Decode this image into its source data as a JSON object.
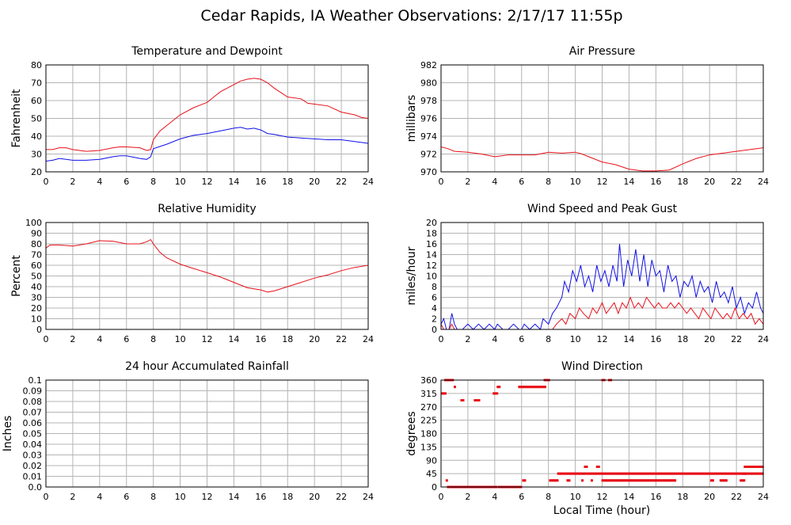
{
  "page_title": "Cedar Rapids, IA Weather Observations: 2/17/17 11:55p",
  "footer_xlabel": "Local Time (hour)",
  "colors": {
    "red": "#e8101a",
    "blue": "#1010e8",
    "grid": "#b4b4b4",
    "axis": "#000000"
  },
  "x_ticks": [
    "0",
    "2",
    "4",
    "6",
    "8",
    "10",
    "12",
    "14",
    "16",
    "18",
    "20",
    "22",
    "24"
  ],
  "chart_data": [
    {
      "id": "temp",
      "type": "line",
      "title": "Temperature and Dewpoint",
      "ylabel": "Fahrenheit",
      "xlim": [
        0,
        24
      ],
      "ylim": [
        20,
        80
      ],
      "yticks": [
        "20",
        "30",
        "40",
        "50",
        "60",
        "70",
        "80"
      ],
      "series": [
        {
          "color": "red",
          "x": [
            0,
            0.5,
            1,
            1.5,
            2,
            3,
            4,
            5,
            5.5,
            6,
            7,
            7.5,
            7.8,
            8,
            8.5,
            9,
            10,
            11,
            12,
            12.5,
            13,
            14,
            14.5,
            15,
            15.5,
            16,
            16.5,
            17,
            18,
            19,
            19.5,
            20,
            21,
            22,
            23,
            23.5,
            24
          ],
          "y": [
            32.5,
            32.5,
            33.5,
            33.5,
            32.5,
            31.5,
            32,
            33.5,
            34,
            34,
            33.5,
            32,
            32.5,
            38,
            43,
            46,
            52,
            56,
            59,
            62,
            65,
            69,
            71,
            72,
            72.5,
            72,
            70,
            67,
            62,
            61,
            58.5,
            58,
            57,
            53.5,
            52,
            50.5,
            50
          ]
        },
        {
          "color": "blue",
          "x": [
            0,
            0.5,
            1,
            2,
            3,
            4,
            5,
            5.5,
            6,
            7,
            7.5,
            7.8,
            8,
            9,
            10,
            11,
            12,
            13,
            14,
            14.5,
            15,
            15.5,
            16,
            16.5,
            17,
            18,
            19,
            20,
            21,
            22,
            23,
            24
          ],
          "y": [
            26,
            26.5,
            27.5,
            26.5,
            26.5,
            27,
            28.5,
            29,
            29,
            27.5,
            27,
            28.5,
            33,
            35.5,
            38.5,
            40.5,
            41.5,
            43,
            44.5,
            45,
            44,
            44.5,
            43.5,
            41.5,
            41,
            39.5,
            39,
            38.5,
            38,
            38,
            37,
            36
          ]
        }
      ]
    },
    {
      "id": "pressure",
      "type": "line",
      "title": "Air Pressure",
      "ylabel": "millibars",
      "xlim": [
        0,
        24
      ],
      "ylim": [
        970,
        982
      ],
      "yticks": [
        "970",
        "972",
        "974",
        "976",
        "978",
        "980",
        "982"
      ],
      "series": [
        {
          "color": "red",
          "x": [
            0,
            0.5,
            1,
            2,
            3,
            4,
            5,
            6,
            7,
            8,
            9,
            10,
            10.5,
            11,
            12,
            13,
            14,
            15,
            16,
            17,
            18,
            19,
            20,
            21,
            22,
            23,
            24
          ],
          "y": [
            972.8,
            972.6,
            972.3,
            972.2,
            972,
            971.7,
            971.9,
            971.9,
            971.9,
            972.2,
            972.1,
            972.2,
            972.0,
            971.7,
            971.1,
            970.8,
            970.3,
            970.1,
            970.1,
            970.2,
            970.9,
            971.5,
            971.9,
            972.1,
            972.3,
            972.5,
            972.7
          ]
        }
      ]
    },
    {
      "id": "humidity",
      "type": "line",
      "title": "Relative Humidity",
      "ylabel": "Percent",
      "xlim": [
        0,
        24
      ],
      "ylim": [
        0,
        100
      ],
      "yticks": [
        "0",
        "10",
        "20",
        "30",
        "40",
        "50",
        "60",
        "70",
        "80",
        "90",
        "100"
      ],
      "series": [
        {
          "color": "red",
          "x": [
            0,
            0.3,
            1,
            2,
            3,
            4,
            5,
            6,
            7,
            7.5,
            7.8,
            8,
            8.5,
            9,
            10,
            11,
            12,
            13,
            14,
            15,
            16,
            16.5,
            17,
            18,
            19,
            20,
            21,
            22,
            23,
            24
          ],
          "y": [
            76,
            79,
            79,
            78,
            80,
            83,
            82.5,
            80,
            80,
            82,
            84,
            80,
            72,
            67,
            61,
            57,
            53,
            49,
            44,
            39,
            37,
            35,
            36,
            40,
            44,
            48,
            51,
            55,
            58,
            60
          ]
        }
      ]
    },
    {
      "id": "wind",
      "type": "line",
      "title": "Wind Speed and Peak Gust",
      "ylabel": "miles/hour",
      "xlim": [
        0,
        24
      ],
      "ylim": [
        0,
        20
      ],
      "yticks": [
        "0",
        "2",
        "4",
        "6",
        "8",
        "10",
        "12",
        "14",
        "16",
        "18",
        "20"
      ],
      "series": [
        {
          "color": "blue",
          "x": [
            0,
            0.2,
            0.4,
            0.6,
            0.8,
            1,
            1.2,
            1.6,
            2,
            2.4,
            2.8,
            3.2,
            3.6,
            4,
            4.2,
            4.6,
            5,
            5.4,
            5.8,
            6,
            6.2,
            6.6,
            7,
            7.4,
            7.6,
            8,
            8.3,
            8.6,
            9,
            9.2,
            9.5,
            9.8,
            10.1,
            10.4,
            10.7,
            11,
            11.3,
            11.6,
            11.9,
            12.2,
            12.5,
            12.8,
            13.1,
            13.3,
            13.6,
            13.9,
            14.2,
            14.5,
            14.8,
            15.1,
            15.4,
            15.7,
            16,
            16.3,
            16.6,
            16.9,
            17.2,
            17.5,
            17.8,
            18.1,
            18.4,
            18.7,
            19,
            19.3,
            19.6,
            19.9,
            20.2,
            20.5,
            20.8,
            21.1,
            21.4,
            21.7,
            22,
            22.3,
            22.6,
            22.9,
            23.2,
            23.5,
            23.8,
            24
          ],
          "y": [
            1,
            2,
            0,
            0,
            3,
            1,
            0,
            0,
            1,
            0,
            1,
            0,
            1,
            0,
            1,
            0,
            0,
            1,
            0,
            0,
            1,
            0,
            1,
            0,
            2,
            1,
            3,
            4,
            6,
            9,
            7,
            11,
            9,
            12,
            8,
            10,
            7,
            12,
            9,
            11,
            8,
            12,
            9,
            16,
            8,
            13,
            10,
            15,
            9,
            14,
            8,
            13,
            10,
            11,
            7,
            12,
            9,
            10,
            6,
            9,
            8,
            10,
            6,
            9,
            7,
            8,
            5,
            9,
            6,
            7,
            5,
            8,
            4,
            6,
            3,
            5,
            4,
            7,
            4,
            3
          ]
        },
        {
          "color": "red",
          "x": [
            0,
            0.2,
            0.4,
            0.6,
            0.8,
            1,
            1.2,
            8.3,
            8.6,
            9,
            9.3,
            9.6,
            10,
            10.3,
            10.6,
            11,
            11.3,
            11.6,
            12,
            12.3,
            12.6,
            12.9,
            13.2,
            13.5,
            13.8,
            14.1,
            14.4,
            14.7,
            15,
            15.3,
            15.6,
            15.9,
            16.2,
            16.5,
            16.8,
            17.1,
            17.4,
            17.7,
            18,
            18.3,
            18.6,
            18.9,
            19.2,
            19.5,
            19.8,
            20.1,
            20.4,
            20.7,
            21,
            21.3,
            21.6,
            21.9,
            22.2,
            22.5,
            22.8,
            23.1,
            23.4,
            23.7,
            24
          ],
          "y": [
            1,
            0,
            0,
            0,
            1,
            0,
            0,
            0,
            1,
            2,
            1,
            3,
            2,
            4,
            3,
            2,
            4,
            3,
            5,
            3,
            4,
            5,
            3,
            5,
            4,
            6,
            4,
            5,
            4,
            6,
            5,
            4,
            5,
            4,
            4,
            5,
            4,
            5,
            4,
            3,
            4,
            3,
            2,
            4,
            3,
            2,
            4,
            3,
            2,
            3,
            2,
            4,
            2,
            3,
            2,
            3,
            1,
            2,
            1
          ]
        }
      ]
    },
    {
      "id": "rain",
      "type": "line",
      "title": "24 hour Accumulated Rainfall",
      "ylabel": "Inches",
      "xlim": [
        0,
        24
      ],
      "ylim": [
        0,
        0.1
      ],
      "yticks": [
        "0.0",
        "0.01",
        "0.02",
        "0.03",
        "0.04",
        "0.05",
        "0.06",
        "0.07",
        "0.08",
        "0.09",
        "0.1"
      ],
      "series": [
        {
          "color": "red",
          "x": [
            0,
            24
          ],
          "y": [
            0,
            0
          ]
        }
      ]
    },
    {
      "id": "direction",
      "type": "scatter",
      "title": "Wind Direction",
      "ylabel": "degrees",
      "xlabel": "Local Time (hour)",
      "xlim": [
        0,
        24
      ],
      "ylim": [
        0,
        360
      ],
      "yticks": [
        "0",
        "45",
        "90",
        "135",
        "180",
        "225",
        "270",
        "315",
        "360"
      ],
      "series": [
        {
          "color": "red",
          "segments": [
            [
              0.05,
              0.4,
              315
            ],
            [
              0.3,
              0.9,
              360
            ],
            [
              0.4,
              0.5,
              22
            ],
            [
              0.5,
              4.2,
              0
            ],
            [
              1.0,
              1.1,
              337
            ],
            [
              1.5,
              1.7,
              292
            ],
            [
              2.5,
              2.9,
              292
            ],
            [
              3.9,
              4.2,
              315
            ],
            [
              4.2,
              4.4,
              337
            ],
            [
              4.3,
              6.0,
              0
            ],
            [
              5.8,
              7.8,
              337
            ],
            [
              7.7,
              8.1,
              360
            ],
            [
              6.1,
              6.3,
              22
            ],
            [
              8.1,
              8.7,
              22
            ],
            [
              8.7,
              22.6,
              45
            ],
            [
              9.4,
              9.6,
              22
            ],
            [
              10.5,
              10.6,
              22
            ],
            [
              10.7,
              10.9,
              68
            ],
            [
              11.2,
              11.3,
              22
            ],
            [
              11.6,
              11.8,
              68
            ],
            [
              12.0,
              12.2,
              360
            ],
            [
              12.5,
              12.7,
              360
            ],
            [
              12.0,
              17.5,
              22
            ],
            [
              20.1,
              20.3,
              22
            ],
            [
              20.8,
              21.3,
              22
            ],
            [
              22.3,
              22.6,
              22
            ],
            [
              22.5,
              22.7,
              45
            ],
            [
              22.6,
              24.0,
              68
            ],
            [
              22.6,
              24.0,
              45
            ]
          ]
        }
      ]
    }
  ]
}
